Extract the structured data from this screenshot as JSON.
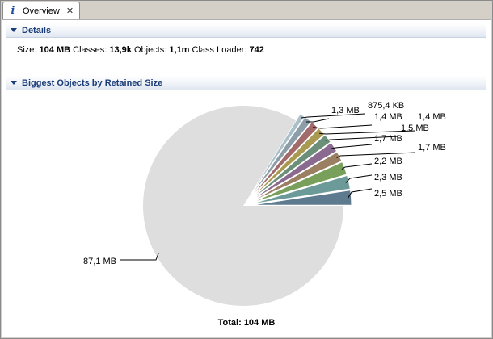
{
  "tab": {
    "label": "Overview",
    "icon": "info-icon"
  },
  "details": {
    "title": "Details",
    "size_label": "Size:",
    "size_value": "104 MB",
    "classes_label": "Classes:",
    "classes_value": "13,9k",
    "objects_label": "Objects:",
    "objects_value": "1,1m",
    "classloader_label": "Class Loader:",
    "classloader_value": "742"
  },
  "biggest": {
    "title": "Biggest Objects by Retained Size"
  },
  "chart_data": {
    "type": "pie",
    "total_label": "Total: 104 MB",
    "unit": "MB",
    "slices": [
      {
        "label": "2,5 MB",
        "value": 2.5,
        "color": "#5e7a8f"
      },
      {
        "label": "2,3 MB",
        "value": 2.3,
        "color": "#6c9a98"
      },
      {
        "label": "2,2 MB",
        "value": 2.2,
        "color": "#78a05a"
      },
      {
        "label": "1,7 MB",
        "value": 1.7,
        "color": "#9a7f62"
      },
      {
        "label": "1,7 MB",
        "value": 1.7,
        "color": "#8a6a8e"
      },
      {
        "label": "1,5 MB",
        "value": 1.5,
        "color": "#6c8f7a"
      },
      {
        "label": "1,4 MB",
        "value": 1.4,
        "color": "#a89a50"
      },
      {
        "label": "1,4 MB",
        "value": 1.4,
        "color": "#a26a6a"
      },
      {
        "label": "1,3 MB",
        "value": 1.3,
        "color": "#8e9ea8"
      },
      {
        "label": "875,4 KB",
        "value": 0.8548,
        "color": "#a9bfc9"
      },
      {
        "label": "87,1 MB",
        "value": 87.1,
        "color": "#dedede"
      }
    ]
  }
}
